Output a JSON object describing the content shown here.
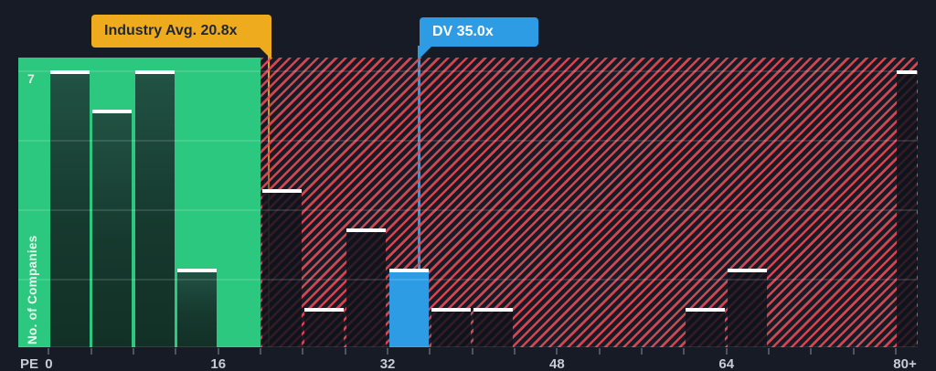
{
  "chart_data": {
    "type": "bar",
    "subtype": "histogram",
    "xlabel": "PE",
    "ylabel": "No. of Companies",
    "y_max_gridline_label": "7",
    "x_tick_values": [
      0,
      16,
      32,
      48,
      64,
      80
    ],
    "x_tick_labels": [
      "0",
      "16",
      "32",
      "48",
      "64",
      "80+"
    ],
    "xlim": [
      0,
      82
    ],
    "ylim": [
      0,
      7.3
    ],
    "grid": "horizontal_faint",
    "gridline_values": [
      1.75,
      3.5,
      5.25,
      7
    ],
    "bin_width": 4,
    "bins": [
      {
        "start": 0,
        "end": 4,
        "count": 7,
        "zone": "below_avg"
      },
      {
        "start": 4,
        "end": 8,
        "count": 6,
        "zone": "below_avg"
      },
      {
        "start": 8,
        "end": 12,
        "count": 7,
        "zone": "below_avg"
      },
      {
        "start": 12,
        "end": 16,
        "count": 2,
        "zone": "below_avg"
      },
      {
        "start": 20,
        "end": 24,
        "count": 4,
        "zone": "above_avg"
      },
      {
        "start": 24,
        "end": 28,
        "count": 1,
        "zone": "above_avg"
      },
      {
        "start": 28,
        "end": 32,
        "count": 3,
        "zone": "above_avg"
      },
      {
        "start": 32,
        "end": 36,
        "count": 2,
        "zone": "above_avg",
        "highlight": "company"
      },
      {
        "start": 36,
        "end": 40,
        "count": 1,
        "zone": "above_avg"
      },
      {
        "start": 40,
        "end": 44,
        "count": 1,
        "zone": "above_avg"
      },
      {
        "start": 60,
        "end": 64,
        "count": 1,
        "zone": "above_avg"
      },
      {
        "start": 64,
        "end": 68,
        "count": 2,
        "zone": "above_avg"
      },
      {
        "start": 80,
        "end": 82,
        "count": 7,
        "zone": "above_avg",
        "open_ended": true
      }
    ],
    "annotations": [
      {
        "id": "industry_avg",
        "label": "Industry Avg. 20.8x",
        "value": 20.8,
        "color": "#eeab1e"
      },
      {
        "id": "company_dv",
        "label": "DV 35.0x",
        "value": 35.0,
        "color": "#2d9ce4"
      }
    ],
    "zones": [
      {
        "name": "below_industry_avg",
        "from": 0,
        "to": 20,
        "style": "solid_green",
        "color": "#2dc87f"
      },
      {
        "name": "above_industry_avg",
        "from": 20,
        "to": 82,
        "style": "red_hatch",
        "color": "#e24956"
      }
    ],
    "colors": {
      "background": "#161b26",
      "bar_below_avg": "#1c4a3b",
      "bar_above_avg": "#14181f",
      "bar_company": "#2d9ce4",
      "bar_top_line": "#ffffff",
      "axis_text": "#c6cbd4"
    }
  }
}
